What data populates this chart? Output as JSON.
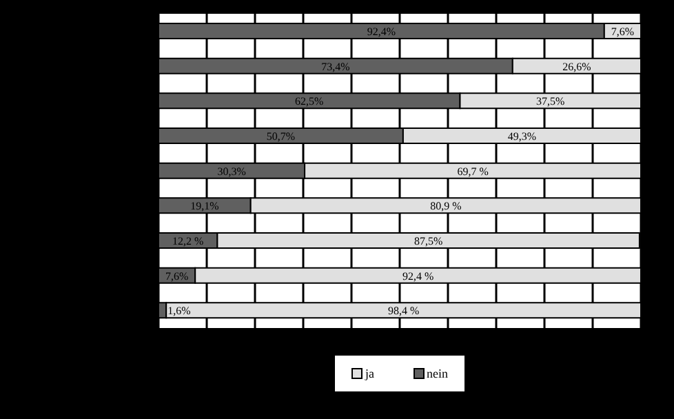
{
  "chart_data": {
    "type": "bar",
    "orientation": "horizontal",
    "stacked": true,
    "categories": [
      null,
      null,
      null,
      null,
      null,
      null,
      null,
      null,
      null
    ],
    "series": [
      {
        "name": "nein",
        "color": "#606060",
        "values": [
          92.4,
          73.4,
          62.5,
          50.7,
          30.3,
          19.1,
          12.2,
          7.6,
          1.6
        ],
        "value_labels": [
          "92,4%",
          "73,4%",
          "62,5%",
          "50,7%",
          "30,3%",
          "19,1%",
          "12,2 %",
          "7,6%",
          "1,6%"
        ]
      },
      {
        "name": "ja",
        "color": "#e0e0e0",
        "values": [
          7.6,
          26.6,
          37.5,
          49.3,
          69.7,
          80.9,
          87.5,
          92.4,
          98.4
        ],
        "value_labels": [
          "7,6%",
          "26,6%",
          "37,5%",
          "49,3%",
          "69,7 %",
          "80,9 %",
          "87,5%",
          "92,4 %",
          "98,4 %"
        ]
      }
    ],
    "xlim": [
      0,
      100
    ],
    "xticks": [
      {
        "value": 0,
        "label": null
      },
      {
        "value": 10,
        "label": null
      },
      {
        "value": 20,
        "label": null
      },
      {
        "value": 30,
        "label": null
      },
      {
        "value": 40,
        "label": null
      },
      {
        "value": 50,
        "label": null
      },
      {
        "value": 60,
        "label": null
      },
      {
        "value": 70,
        "label": null
      },
      {
        "value": 80,
        "label": null
      },
      {
        "value": 90,
        "label": null
      },
      {
        "value": 100,
        "label": null
      }
    ],
    "grid": "x",
    "legend": "bottom"
  }
}
